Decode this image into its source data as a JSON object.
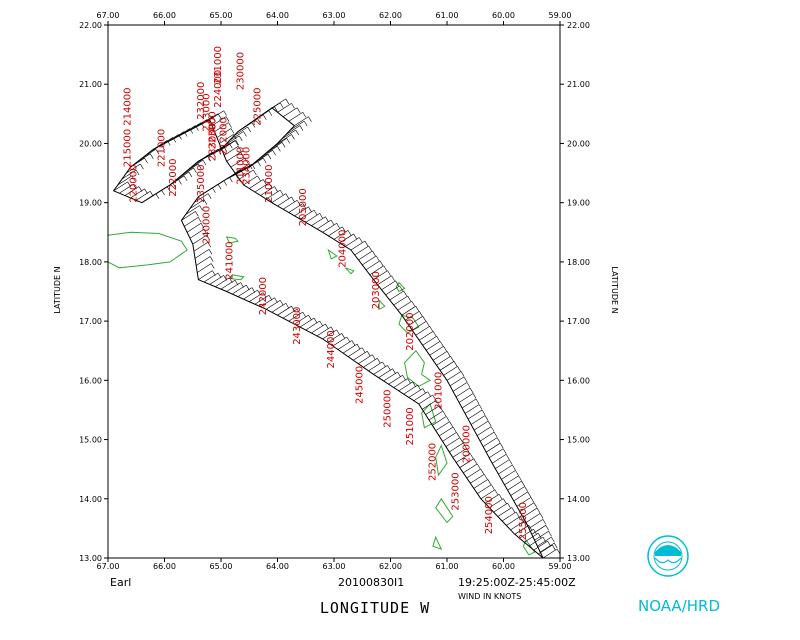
{
  "chart_data": {
    "type": "wind-barb-track",
    "storm_name": "Earl",
    "flight_id": "20100830I1",
    "time_range": "19:25:00Z-25:45:00Z",
    "wind_units_label": "WIND IN KNOTS",
    "xlabel": "LONGITUDE   W",
    "ylabel": "LATITUDE   N",
    "xlim": [
      67.0,
      59.0
    ],
    "ylim": [
      13.0,
      22.0
    ],
    "x_ticks": [
      "67.00",
      "66.00",
      "65.00",
      "64.00",
      "63.00",
      "62.00",
      "61.00",
      "60.00",
      "59.00"
    ],
    "y_ticks": [
      "13.00",
      "14.00",
      "15.00",
      "16.00",
      "17.00",
      "18.00",
      "19.00",
      "20.00",
      "21.00",
      "22.00"
    ],
    "track": [
      [
        59.3,
        13.0
      ],
      [
        59.6,
        13.6
      ],
      [
        60.2,
        14.6
      ],
      [
        61.0,
        16.0
      ],
      [
        61.8,
        17.1
      ],
      [
        62.3,
        17.7
      ],
      [
        62.7,
        18.2
      ],
      [
        63.2,
        18.5
      ],
      [
        64.1,
        19.0
      ],
      [
        64.6,
        19.3
      ],
      [
        64.9,
        19.7
      ],
      [
        65.2,
        20.4
      ],
      [
        66.2,
        19.9
      ],
      [
        66.6,
        19.6
      ],
      [
        66.9,
        19.2
      ],
      [
        66.4,
        19.0
      ],
      [
        65.9,
        19.3
      ],
      [
        65.4,
        19.7
      ],
      [
        65.0,
        19.9
      ],
      [
        64.7,
        20.2
      ],
      [
        64.1,
        20.6
      ],
      [
        63.7,
        20.3
      ],
      [
        64.0,
        20.0
      ],
      [
        64.5,
        19.6
      ],
      [
        64.9,
        19.4
      ],
      [
        65.4,
        19.1
      ],
      [
        65.7,
        18.7
      ],
      [
        65.5,
        18.3
      ],
      [
        65.4,
        17.7
      ],
      [
        64.9,
        17.5
      ],
      [
        64.2,
        17.2
      ],
      [
        63.2,
        16.7
      ],
      [
        62.3,
        16.1
      ],
      [
        61.5,
        15.6
      ],
      [
        60.9,
        14.7
      ],
      [
        60.4,
        14.0
      ],
      [
        59.8,
        13.4
      ],
      [
        59.3,
        13.0
      ]
    ],
    "time_labels": [
      {
        "text": "214000",
        "lon": 66.6,
        "lat": 20.3
      },
      {
        "text": "215000",
        "lon": 66.6,
        "lat": 19.6
      },
      {
        "text": "220000",
        "lon": 66.5,
        "lat": 19.0
      },
      {
        "text": "221000",
        "lon": 66.0,
        "lat": 19.6
      },
      {
        "text": "222000",
        "lon": 65.8,
        "lat": 19.1
      },
      {
        "text": "223000",
        "lon": 65.1,
        "lat": 19.9
      },
      {
        "text": "224000",
        "lon": 65.0,
        "lat": 20.6
      },
      {
        "text": "225000",
        "lon": 64.3,
        "lat": 20.3
      },
      {
        "text": "230000",
        "lon": 64.6,
        "lat": 20.9
      },
      {
        "text": "231000",
        "lon": 65.0,
        "lat": 21.0
      },
      {
        "text": "232000",
        "lon": 65.3,
        "lat": 20.4
      },
      {
        "text": "233000",
        "lon": 65.1,
        "lat": 19.7
      },
      {
        "text": "234000",
        "lon": 64.5,
        "lat": 19.3
      },
      {
        "text": "235000",
        "lon": 65.3,
        "lat": 19.0
      },
      {
        "text": "240000",
        "lon": 65.2,
        "lat": 18.3
      },
      {
        "text": "241000",
        "lon": 64.8,
        "lat": 17.7
      },
      {
        "text": "242000",
        "lon": 64.2,
        "lat": 17.1
      },
      {
        "text": "243000",
        "lon": 63.6,
        "lat": 16.6
      },
      {
        "text": "244000",
        "lon": 63.0,
        "lat": 16.2
      },
      {
        "text": "245000",
        "lon": 62.5,
        "lat": 15.6
      },
      {
        "text": "250000",
        "lon": 62.0,
        "lat": 15.2
      },
      {
        "text": "251000",
        "lon": 61.6,
        "lat": 14.9
      },
      {
        "text": "252000",
        "lon": 61.2,
        "lat": 14.3
      },
      {
        "text": "253000",
        "lon": 60.8,
        "lat": 13.8
      },
      {
        "text": "254000",
        "lon": 60.2,
        "lat": 13.4
      },
      {
        "text": "255000",
        "lon": 59.6,
        "lat": 13.3
      },
      {
        "text": "200000",
        "lon": 60.6,
        "lat": 14.6
      },
      {
        "text": "201000",
        "lon": 61.1,
        "lat": 15.5
      },
      {
        "text": "202000",
        "lon": 61.6,
        "lat": 16.5
      },
      {
        "text": "203000",
        "lon": 62.2,
        "lat": 17.2
      },
      {
        "text": "204000",
        "lon": 62.8,
        "lat": 17.9
      },
      {
        "text": "205000",
        "lon": 63.5,
        "lat": 18.6
      },
      {
        "text": "210000",
        "lon": 64.1,
        "lat": 19.0
      },
      {
        "text": "211000",
        "lon": 64.6,
        "lat": 19.3
      },
      {
        "text": "212000",
        "lon": 64.9,
        "lat": 19.8
      },
      {
        "text": "213000",
        "lon": 65.2,
        "lat": 20.2
      }
    ],
    "land_color": "#33aa33",
    "track_color": "#000000",
    "label_color": "#cc0000"
  },
  "logo": {
    "text": "NOAA/HRD",
    "emblem": "NOAA",
    "color": "#00bcd4"
  }
}
